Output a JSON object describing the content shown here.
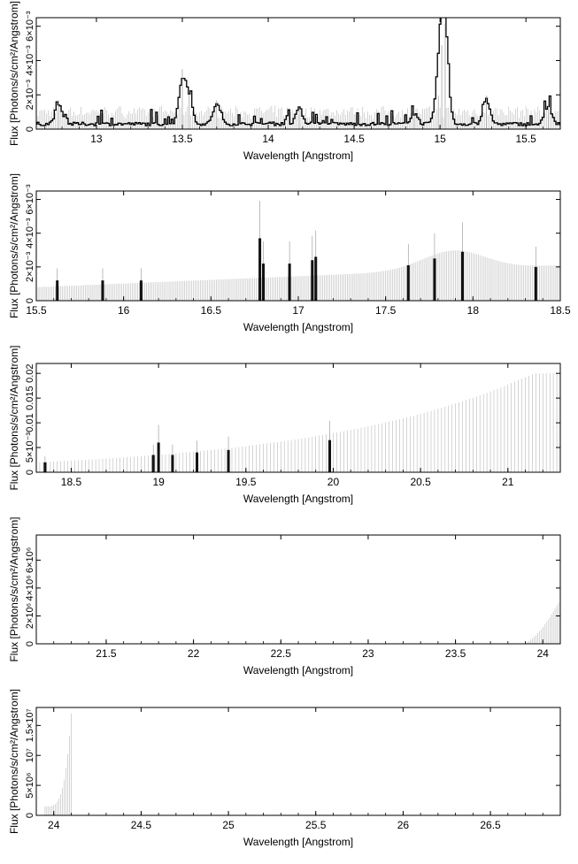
{
  "chart_data": [
    {
      "type": "step",
      "xlabel": "Wavelength [Angstrom]",
      "ylabel": "Flux [Photons/s/cm²/Angstrom]",
      "xlim": [
        12.65,
        15.7
      ],
      "ylim": [
        0,
        0.0065
      ],
      "xticks": [
        13,
        13.5,
        14,
        14.5,
        15,
        15.5
      ],
      "xticklabels": [
        "13",
        "13.5",
        "14",
        "14.5",
        "15",
        "15.5"
      ],
      "yticks": [
        0,
        0.002,
        0.004,
        0.006
      ],
      "yticklabels": [
        "0",
        "2×10⁻³",
        "4×10⁻³",
        "6×10⁻³"
      ],
      "profile": {
        "kind": "steady",
        "level": 0.0003,
        "scatter": 0.0002
      },
      "peaks": [
        [
          12.78,
          0.0012
        ],
        [
          13.5,
          0.0025
        ],
        [
          13.54,
          0.0015
        ],
        [
          13.7,
          0.0012
        ],
        [
          14.18,
          0.0009
        ],
        [
          14.85,
          0.0006
        ],
        [
          14.99,
          0.0014
        ],
        [
          15.01,
          0.0035
        ],
        [
          15.03,
          0.0044
        ],
        [
          15.27,
          0.0014
        ],
        [
          15.63,
          0.001
        ]
      ],
      "binwidth": 0.01
    },
    {
      "type": "step",
      "xlabel": "Wavelength [Angstrom]",
      "ylabel": "Flux [Photons/s/cm²/Angstrom]",
      "xlim": [
        15.5,
        18.5
      ],
      "ylim": [
        0,
        0.0065
      ],
      "xticks": [
        15.5,
        16,
        16.5,
        17,
        17.5,
        18,
        18.5
      ],
      "xticklabels": [
        "15.5",
        "16",
        "16.5",
        "17",
        "17.5",
        "18",
        "18.5"
      ],
      "yticks": [
        0,
        0.002,
        0.004,
        0.006
      ],
      "yticklabels": [
        "0",
        "2×10⁻³",
        "4×10⁻³",
        "6×10⁻³"
      ],
      "profile": {
        "kind": "rising_sparse",
        "start": 0.0008,
        "end": 0.0021,
        "bump_x": 17.9,
        "bump_h": 0.0031
      },
      "spikes": [
        [
          15.62,
          0.0012
        ],
        [
          15.88,
          0.0012
        ],
        [
          16.1,
          0.0012
        ],
        [
          16.78,
          0.0037
        ],
        [
          16.8,
          0.0022
        ],
        [
          16.95,
          0.0022
        ],
        [
          17.08,
          0.0024
        ],
        [
          17.1,
          0.0026
        ],
        [
          17.63,
          0.0021
        ],
        [
          17.78,
          0.0025
        ],
        [
          17.94,
          0.0029
        ],
        [
          18.36,
          0.002
        ]
      ],
      "binwidth": 0.01
    },
    {
      "type": "step",
      "xlabel": "Wavelength [Angstrom]",
      "ylabel": "Flux [Photons/s/cm²/Angstrom]",
      "xlim": [
        18.3,
        21.3
      ],
      "ylim": [
        0,
        0.022
      ],
      "xticks": [
        18.5,
        19,
        19.5,
        20,
        20.5,
        21
      ],
      "xticklabels": [
        "18.5",
        "19",
        "19.5",
        "20",
        "20.5",
        "21"
      ],
      "yticks": [
        0,
        0.005,
        0.01,
        0.015,
        0.02
      ],
      "yticklabels": [
        "0",
        "5×10⁻³",
        "0.01",
        "0.015",
        "0.02"
      ],
      "profile": {
        "kind": "exp_rise",
        "x0": 18.3,
        "y0": 0.002,
        "x1": 21.15,
        "y1": 0.02
      },
      "spikes": [
        [
          18.35,
          0.002
        ],
        [
          18.97,
          0.0035
        ],
        [
          19.0,
          0.006
        ],
        [
          19.08,
          0.0035
        ],
        [
          19.22,
          0.004
        ],
        [
          19.4,
          0.0045
        ],
        [
          19.98,
          0.0065
        ]
      ],
      "binwidth": 0.02
    },
    {
      "type": "step",
      "xlabel": "Wavelength [Angstrom]",
      "ylabel": "Flux [Photons/s/cm²/Angstrom]",
      "xlim": [
        21.1,
        24.1
      ],
      "ylim": [
        0,
        7800000
      ],
      "xticks": [
        21.5,
        22,
        22.5,
        23,
        23.5,
        24
      ],
      "xticklabels": [
        "21.5",
        "22",
        "22.5",
        "23",
        "23.5",
        "24"
      ],
      "yticks": [
        0,
        2000000,
        4000000,
        6000000
      ],
      "yticklabels": [
        "0",
        "2×10⁶",
        "4×10⁶",
        "6×10⁶"
      ],
      "profile": {
        "kind": "tail_rise",
        "x_start": 23.88,
        "x_end": 24.1,
        "y_end": 3200000
      },
      "binwidth": 0.01
    },
    {
      "type": "step",
      "xlabel": "Wavelength [Angstrom]",
      "ylabel": "Flux [Photons/s/cm²/Angstrom]",
      "xlim": [
        23.9,
        26.9
      ],
      "ylim": [
        0,
        18000000
      ],
      "xticks": [
        24,
        24.5,
        25,
        25.5,
        26,
        26.5
      ],
      "xticklabels": [
        "24",
        "24.5",
        "25",
        "25.5",
        "26",
        "26.5"
      ],
      "yticks": [
        0,
        5000000,
        10000000,
        15000000
      ],
      "yticklabels": [
        "0",
        "5×10⁶",
        "10⁷",
        "1.5×10⁷"
      ],
      "profile": {
        "kind": "head_rise",
        "x_start": 23.95,
        "x_end": 24.1,
        "y_start": 1500000,
        "y_end": 17000000
      },
      "binwidth": 0.01
    }
  ]
}
